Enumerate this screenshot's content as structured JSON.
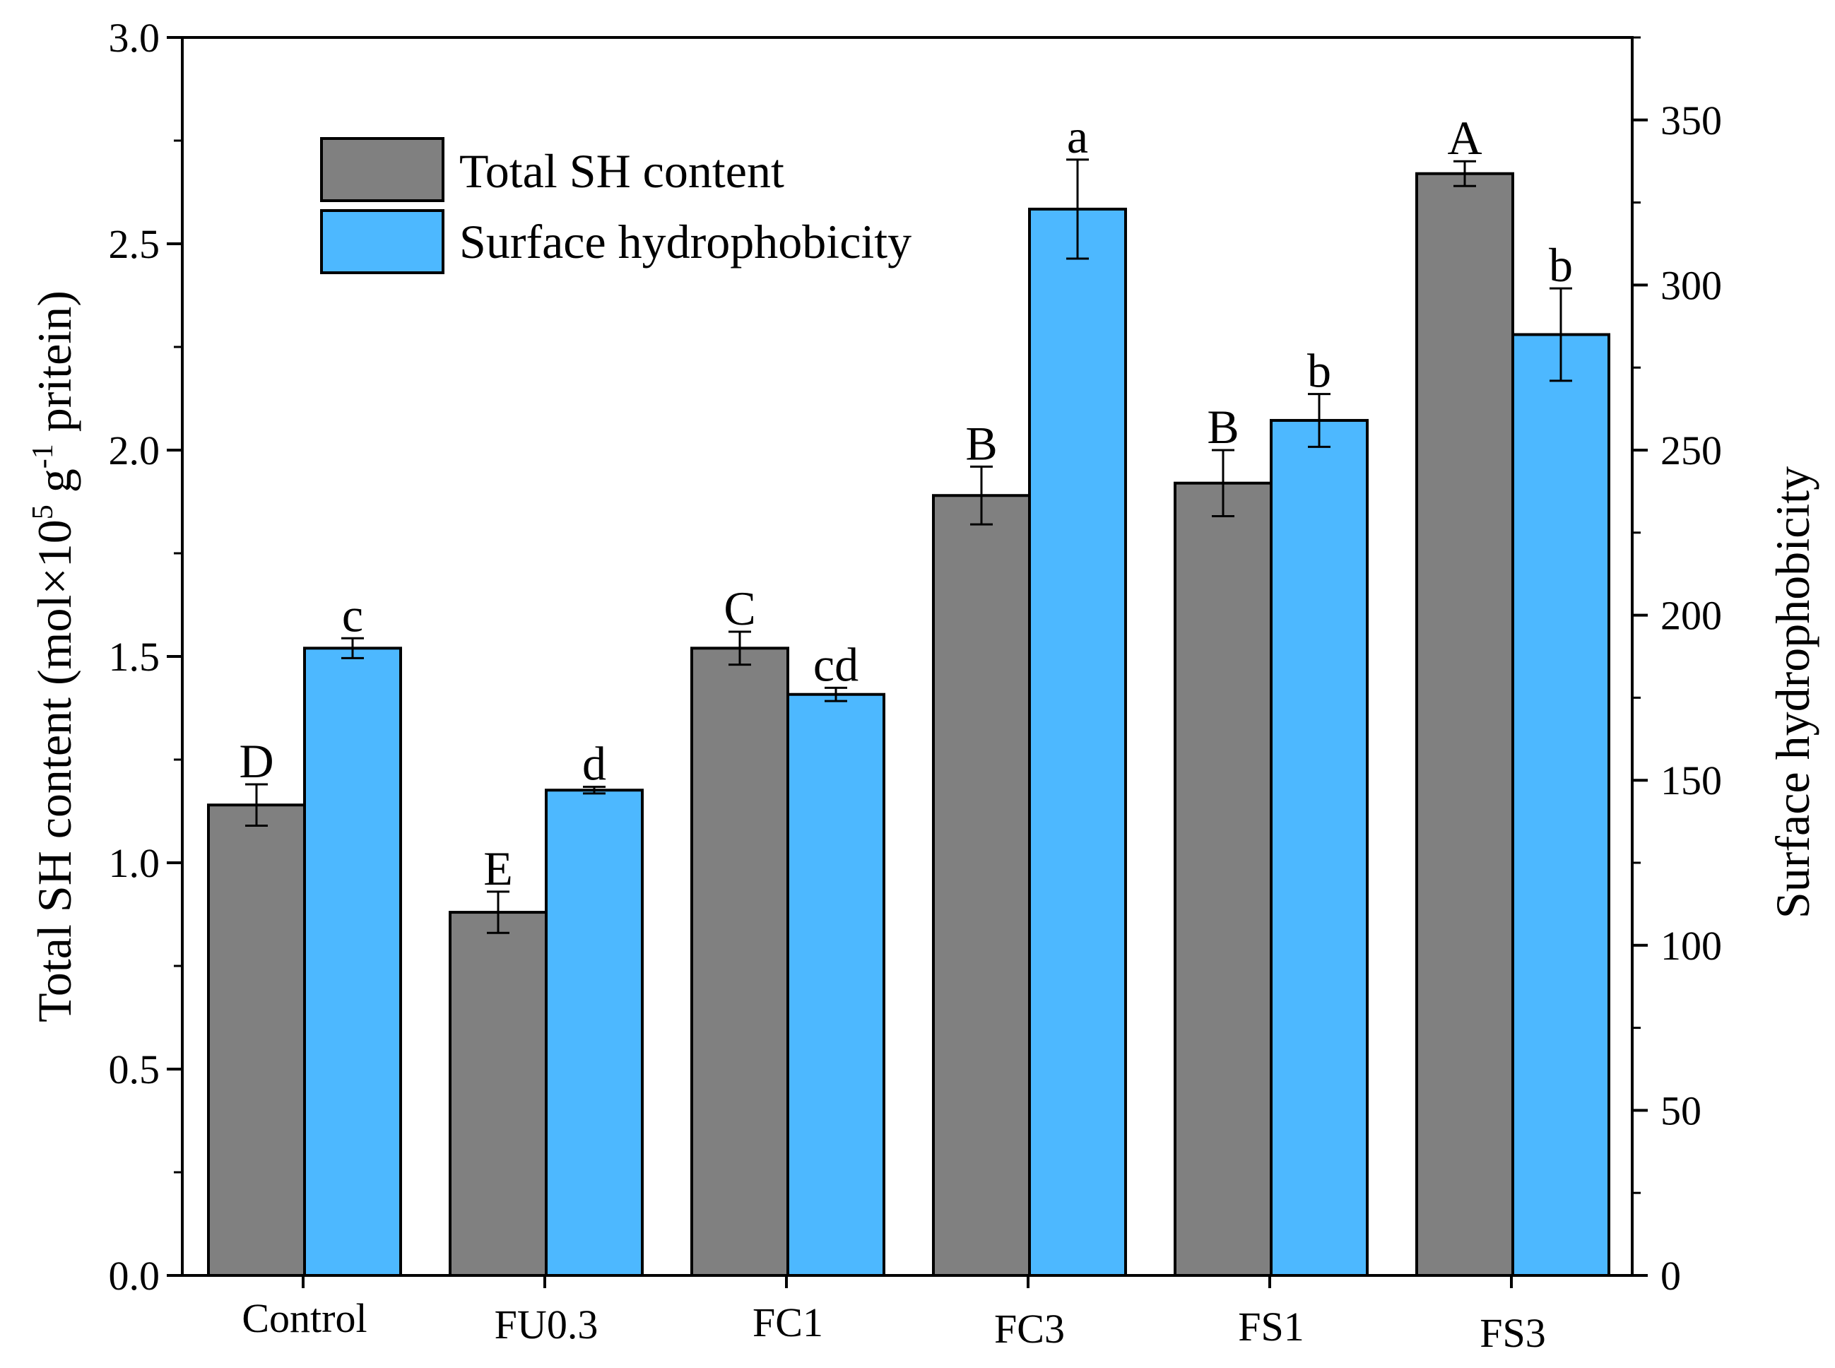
{
  "chart_data": {
    "type": "bar",
    "categories": [
      "Control",
      "FU0.3",
      "FC1",
      "FC3",
      "FS1",
      "FS3"
    ],
    "series": [
      {
        "name": "Total SH content",
        "axis": "left",
        "color": "#808080",
        "values": [
          1.14,
          0.88,
          1.52,
          1.89,
          1.92,
          2.67
        ],
        "errors": [
          0.05,
          0.05,
          0.04,
          0.07,
          0.08,
          0.03
        ],
        "labels": [
          "D",
          "E",
          "C",
          "B",
          "B",
          "A"
        ]
      },
      {
        "name": "Surface hydrophobicity",
        "axis": "right",
        "color": "#4db8ff",
        "values": [
          190,
          147,
          176,
          323,
          259,
          285
        ],
        "errors": [
          3,
          1,
          2,
          15,
          8,
          14
        ],
        "labels": [
          "c",
          "d",
          "cd",
          "a",
          "b",
          "b"
        ]
      }
    ],
    "left_axis": {
      "title_main": "Total SH content (mol×10",
      "title_sup1": "5",
      "title_mid": " g",
      "title_sup2": "-1",
      "title_end": " pritein)",
      "ylim": [
        0,
        3.0
      ],
      "ticks": [
        "0.0",
        "0.5",
        "1.0",
        "1.5",
        "2.0",
        "2.5",
        "3.0"
      ]
    },
    "right_axis": {
      "title": "Surface hydrophobicity",
      "ylim": [
        0,
        375
      ],
      "ticks": [
        "0",
        "50",
        "100",
        "150",
        "200",
        "250",
        "300",
        "350"
      ]
    },
    "legend": {
      "placement": "top-left",
      "entries": [
        "Total SH content",
        "Surface hydrophobicity"
      ]
    }
  }
}
